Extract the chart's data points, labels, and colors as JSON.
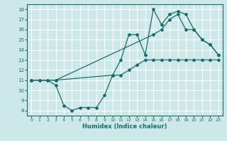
{
  "xlabel": "Humidex (Indice chaleur)",
  "bg_color": "#cde8e8",
  "grid_color": "#ffffff",
  "line_color": "#1a6b6b",
  "xlim": [
    -0.5,
    23.5
  ],
  "ylim": [
    7.5,
    18.5
  ],
  "xticks": [
    0,
    1,
    2,
    3,
    4,
    5,
    6,
    7,
    8,
    9,
    10,
    11,
    12,
    13,
    14,
    15,
    16,
    17,
    18,
    19,
    20,
    21,
    22,
    23
  ],
  "yticks": [
    8,
    9,
    10,
    11,
    12,
    13,
    14,
    15,
    16,
    17,
    18
  ],
  "line1_x": [
    0,
    1,
    2,
    3,
    10,
    11,
    12,
    13,
    14,
    15,
    16,
    17,
    18,
    19,
    20,
    21,
    22,
    23
  ],
  "line1_y": [
    11,
    11,
    11,
    11,
    11.5,
    13.0,
    15.5,
    15.5,
    13.5,
    18.0,
    16.5,
    17.5,
    17.8,
    17.5,
    16.0,
    15.0,
    14.5,
    13.5
  ],
  "line2_x": [
    0,
    3,
    15,
    16,
    17,
    18,
    19,
    20,
    21,
    22,
    23
  ],
  "line2_y": [
    11,
    11,
    15.5,
    16.0,
    17.0,
    17.5,
    16.0,
    16.0,
    15.0,
    14.5,
    13.5
  ],
  "line3_x": [
    0,
    1,
    2,
    3,
    4,
    5,
    6,
    7,
    8,
    9,
    10,
    11,
    12,
    13,
    14,
    15,
    16,
    17,
    18,
    19,
    20,
    21,
    22,
    23
  ],
  "line3_y": [
    11,
    11,
    11,
    10.5,
    8.5,
    8.0,
    8.3,
    8.3,
    8.3,
    9.5,
    11.5,
    11.5,
    12.0,
    12.5,
    13.0,
    13.0,
    13.0,
    13.0,
    13.0,
    13.0,
    13.0,
    13.0,
    13.0,
    13.0
  ]
}
